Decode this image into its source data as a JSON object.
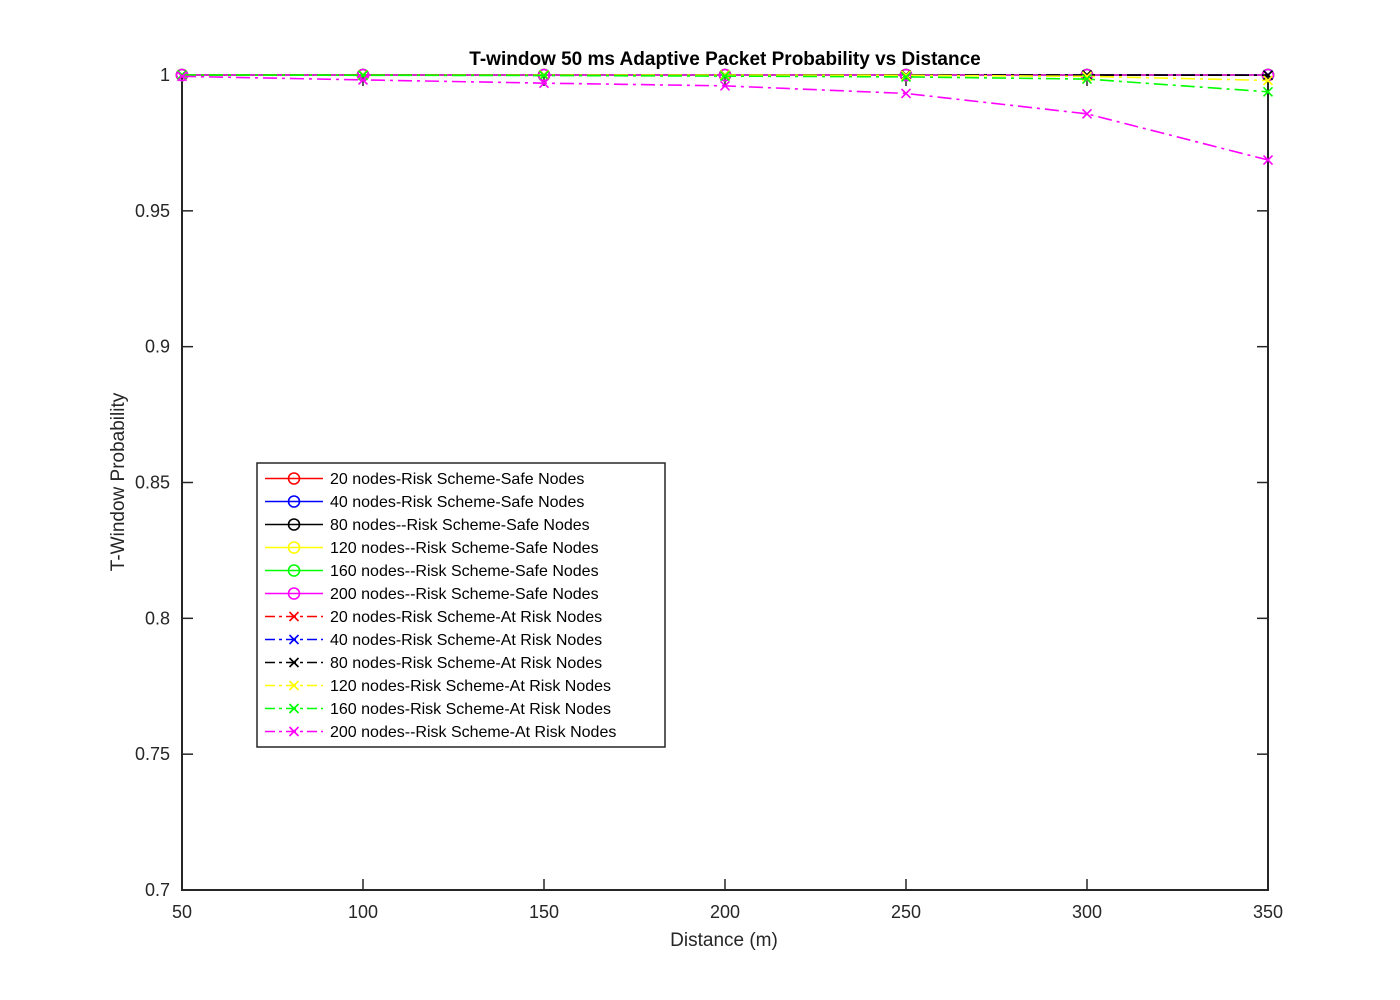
{
  "chart_data": {
    "type": "line",
    "title": "T-window 50 ms Adaptive Packet Probability vs Distance",
    "xlabel": "Distance (m)",
    "ylabel": "T-Window Probability",
    "xlim": [
      50,
      350
    ],
    "ylim": [
      0.7,
      1.0
    ],
    "xticks": [
      50,
      100,
      150,
      200,
      250,
      300,
      350
    ],
    "yticks": [
      0.7,
      0.75,
      0.8,
      0.85,
      0.9,
      0.95,
      1
    ],
    "xtick_labels": [
      "50",
      "100",
      "150",
      "200",
      "250",
      "300",
      "350"
    ],
    "ytick_labels": [
      "0.7",
      "0.75",
      "0.8",
      "0.85",
      "0.9",
      "0.95",
      "1"
    ],
    "grid": false,
    "legend_position": "left",
    "x": [
      50,
      100,
      150,
      200,
      250,
      300,
      350
    ],
    "series": [
      {
        "name": "20 nodes-Risk Scheme-Safe Nodes",
        "color": "#ff0000",
        "line": "solid",
        "marker": "circle",
        "values": [
          1,
          1,
          1,
          1,
          1,
          1,
          1
        ]
      },
      {
        "name": "40 nodes-Risk Scheme-Safe Nodes",
        "color": "#0000ff",
        "line": "solid",
        "marker": "circle",
        "values": [
          1,
          1,
          1,
          1,
          1,
          1,
          1
        ]
      },
      {
        "name": "80 nodes--Risk Scheme-Safe Nodes",
        "color": "#000000",
        "line": "solid",
        "marker": "circle",
        "values": [
          1,
          1,
          1,
          1,
          1,
          1,
          1
        ]
      },
      {
        "name": "120 nodes--Risk Scheme-Safe Nodes",
        "color": "#ffff00",
        "line": "solid",
        "marker": "circle",
        "values": [
          1,
          1,
          1,
          1,
          1,
          1,
          1
        ]
      },
      {
        "name": "160 nodes--Risk Scheme-Safe Nodes",
        "color": "#00ff00",
        "line": "solid",
        "marker": "circle",
        "values": [
          1,
          1,
          1,
          1,
          1,
          1,
          1
        ]
      },
      {
        "name": "200 nodes--Risk Scheme-Safe Nodes",
        "color": "#ff00ff",
        "line": "solid",
        "marker": "circle",
        "values": [
          1,
          1,
          1,
          1,
          1,
          1,
          1
        ]
      },
      {
        "name": "20 nodes-Risk Scheme-At Risk Nodes",
        "color": "#ff0000",
        "line": "dashdot",
        "marker": "x",
        "values": [
          1,
          1,
          1,
          1,
          1,
          1,
          1
        ]
      },
      {
        "name": "40 nodes-Risk Scheme-At Risk Nodes",
        "color": "#0000ff",
        "line": "dashdot",
        "marker": "x",
        "values": [
          1,
          1,
          1,
          1,
          1,
          1,
          1
        ]
      },
      {
        "name": "80 nodes-Risk Scheme-At Risk Nodes",
        "color": "#000000",
        "line": "dashdot",
        "marker": "x",
        "values": [
          1,
          1,
          1,
          1,
          1,
          1,
          0.9999
        ]
      },
      {
        "name": "120 nodes-Risk Scheme-At Risk Nodes",
        "color": "#ffff00",
        "line": "dashdot",
        "marker": "x",
        "values": [
          1,
          1,
          1,
          1,
          0.9999,
          0.9995,
          0.998
        ]
      },
      {
        "name": "160 nodes-Risk Scheme-At Risk Nodes",
        "color": "#00ff00",
        "line": "dashdot",
        "marker": "x",
        "values": [
          1,
          0.9999,
          0.9998,
          0.9996,
          0.9993,
          0.9985,
          0.9938
        ]
      },
      {
        "name": "200 nodes--Risk Scheme-At Risk Nodes",
        "color": "#ff00ff",
        "line": "dashdot",
        "marker": "x",
        "values": [
          0.9995,
          0.9982,
          0.997,
          0.996,
          0.9932,
          0.9857,
          0.9687
        ]
      }
    ]
  }
}
